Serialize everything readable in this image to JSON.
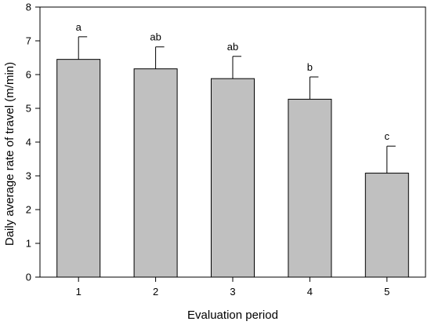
{
  "chart_data": {
    "type": "bar",
    "xlabel": "Evaluation period",
    "ylabel": "Daily average rate of travel (m/min)",
    "categories": [
      "1",
      "2",
      "3",
      "4",
      "5"
    ],
    "values": [
      6.45,
      6.17,
      5.88,
      5.27,
      3.08
    ],
    "errors": [
      0.67,
      0.65,
      0.66,
      0.66,
      0.8
    ],
    "significance_labels": [
      "a",
      "ab",
      "ab",
      "b",
      "c"
    ],
    "ylim": [
      0,
      8
    ],
    "yticks": [
      "0",
      "1",
      "2",
      "3",
      "4",
      "5",
      "6",
      "7",
      "8"
    ],
    "grid": false,
    "bar_color": "#c0c0c0",
    "edge_color": "#000000"
  }
}
